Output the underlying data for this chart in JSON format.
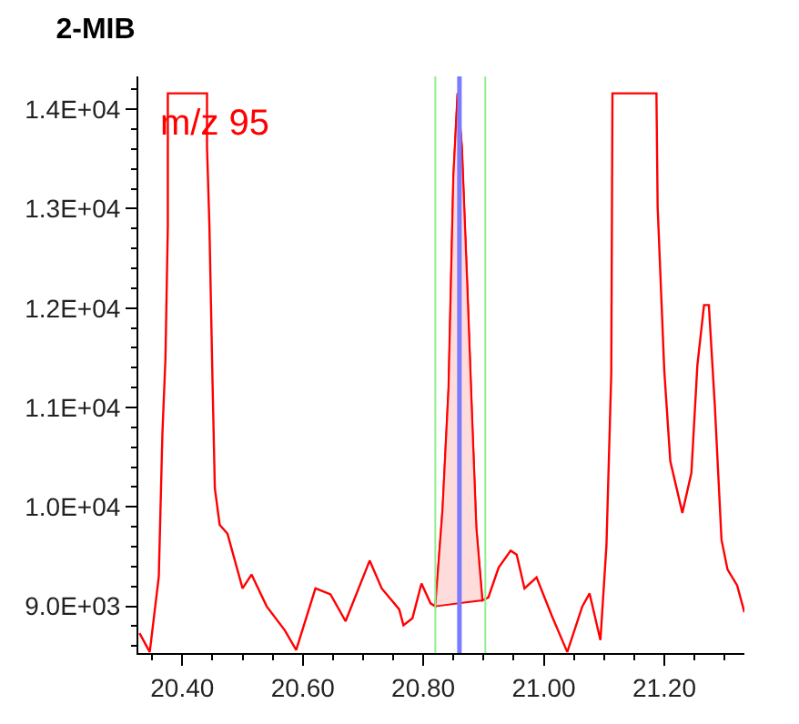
{
  "chart_data": {
    "type": "line",
    "title": "2-MIB",
    "annotations": [
      "m/z 95"
    ],
    "series": [
      {
        "color": "#ff0000",
        "x": [
          20.329,
          20.346,
          20.361,
          20.367,
          20.372,
          20.376,
          20.376,
          20.441,
          20.441,
          20.445,
          20.45,
          20.454,
          20.462,
          20.475,
          20.5,
          20.515,
          20.54,
          20.57,
          20.589,
          20.621,
          20.646,
          20.671,
          20.711,
          20.731,
          20.76,
          20.767,
          20.782,
          20.797,
          20.812,
          20.82,
          20.832,
          20.842,
          20.85,
          20.857,
          20.864,
          20.873,
          20.881,
          20.888,
          20.898,
          20.908,
          20.925,
          20.945,
          20.955,
          20.968,
          20.988,
          21.013,
          21.039,
          21.064,
          21.076,
          21.094,
          21.104,
          21.112,
          21.114,
          21.187,
          21.189,
          21.2,
          21.21,
          21.23,
          21.245,
          21.255,
          21.266,
          21.274,
          21.284,
          21.295,
          21.305,
          21.321,
          21.333
        ],
        "values": [
          8730,
          8540,
          9300,
          10740,
          11490,
          12830,
          14160,
          14160,
          13620,
          12830,
          11310,
          10190,
          9820,
          9730,
          9180,
          9320,
          9000,
          8760,
          8560,
          9180,
          9120,
          8850,
          9460,
          9180,
          8970,
          8810,
          8880,
          9230,
          9030,
          9000,
          9970,
          11190,
          13320,
          14160,
          13620,
          12220,
          10890,
          9790,
          9060,
          9090,
          9390,
          9560,
          9520,
          9180,
          9290,
          8910,
          8540,
          9000,
          9130,
          8660,
          9610,
          11340,
          14160,
          14160,
          13020,
          11370,
          10460,
          9940,
          10340,
          11430,
          12030,
          12030,
          11010,
          9670,
          9370,
          9210,
          8940
        ]
      },
      {
        "type": "area",
        "color": "#ffdcdc",
        "x": [
          20.82,
          20.832,
          20.842,
          20.85,
          20.857,
          20.864,
          20.873,
          20.881,
          20.888,
          20.898
        ],
        "values": [
          9000,
          9970,
          11190,
          13320,
          14160,
          13620,
          12220,
          10890,
          9790,
          9060
        ]
      }
    ],
    "xlim": [
      20.327,
      21.333
    ],
    "xticks": [
      {
        "value": 20.4,
        "label": "20.40"
      },
      {
        "value": 20.6,
        "label": "20.60"
      },
      {
        "value": 20.8,
        "label": "20.80"
      },
      {
        "value": 21.0,
        "label": "21.00"
      },
      {
        "value": 21.2,
        "label": "21.20"
      }
    ],
    "ylim": [
      8530,
      14330
    ],
    "yticks": [
      {
        "value": 9000,
        "label": "9.0E+03"
      },
      {
        "value": 10000,
        "label": "1.0E+04"
      },
      {
        "value": 11000,
        "label": "1.1E+04"
      },
      {
        "value": 12000,
        "label": "1.2E+04"
      },
      {
        "value": 13000,
        "label": "1.3E+04"
      },
      {
        "value": 14000,
        "label": "1.4E+04"
      }
    ],
    "ref_lines": [
      {
        "axis": "x",
        "value": 20.82,
        "color": "#90ee90"
      },
      {
        "axis": "x",
        "value": 20.86,
        "color": "#7b7bff"
      },
      {
        "axis": "x",
        "value": 20.903,
        "color": "#90ee90"
      }
    ]
  }
}
